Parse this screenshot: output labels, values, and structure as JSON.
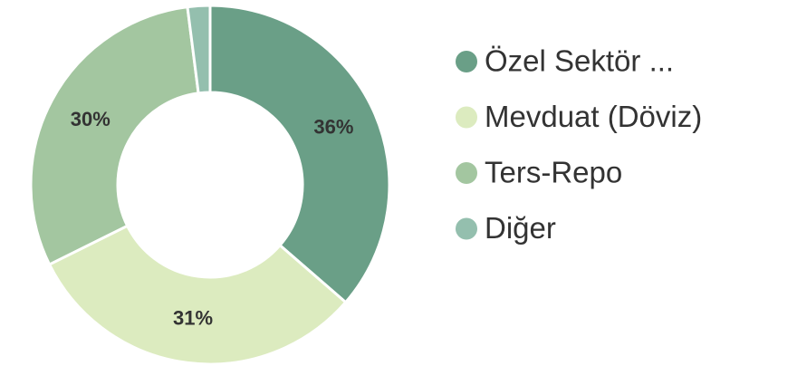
{
  "chart_data": {
    "type": "donut",
    "categories": [
      "Özel Sektör ...",
      "Mevduat (Döviz)",
      "Ters-Repo",
      "Diğer"
    ],
    "values": [
      36,
      31,
      30,
      2
    ],
    "value_labels": [
      "36%",
      "31%",
      "30%",
      null
    ],
    "colors": [
      "#6a9f87",
      "#dcebbf",
      "#a3c6a0",
      "#94bfae"
    ],
    "legend": "right"
  }
}
